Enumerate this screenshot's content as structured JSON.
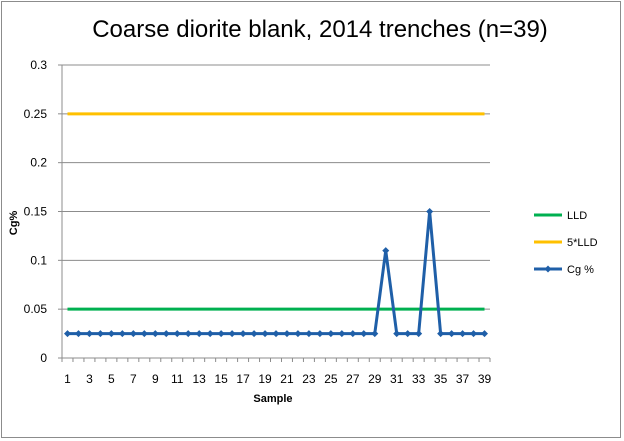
{
  "chart_data": {
    "type": "line",
    "title": "Coarse diorite blank, 2014 trenches (n=39)",
    "xlabel": "Sample",
    "ylabel": "Cg%",
    "ylim": [
      0,
      0.3
    ],
    "yticks": [
      0,
      0.05,
      0.1,
      0.15,
      0.2,
      0.25,
      0.3
    ],
    "ytick_labels": [
      "0",
      "0.05",
      "0.1",
      "0.15",
      "0.2",
      "0.25",
      "0.3"
    ],
    "x": [
      1,
      2,
      3,
      4,
      5,
      6,
      7,
      8,
      9,
      10,
      11,
      12,
      13,
      14,
      15,
      16,
      17,
      18,
      19,
      20,
      21,
      22,
      23,
      24,
      25,
      26,
      27,
      28,
      29,
      30,
      31,
      32,
      33,
      34,
      35,
      36,
      37,
      38,
      39
    ],
    "xtick_labels": [
      "1",
      "3",
      "5",
      "7",
      "9",
      "11",
      "13",
      "15",
      "17",
      "19",
      "21",
      "23",
      "25",
      "27",
      "29",
      "31",
      "33",
      "35",
      "37",
      "39"
    ],
    "grid": true,
    "legend_position": "right",
    "series": [
      {
        "name": "LLD",
        "color": "#00b050",
        "values": [
          0.05,
          0.05,
          0.05,
          0.05,
          0.05,
          0.05,
          0.05,
          0.05,
          0.05,
          0.05,
          0.05,
          0.05,
          0.05,
          0.05,
          0.05,
          0.05,
          0.05,
          0.05,
          0.05,
          0.05,
          0.05,
          0.05,
          0.05,
          0.05,
          0.05,
          0.05,
          0.05,
          0.05,
          0.05,
          0.05,
          0.05,
          0.05,
          0.05,
          0.05,
          0.05,
          0.05,
          0.05,
          0.05,
          0.05
        ]
      },
      {
        "name": "5*LLD",
        "color": "#ffc000",
        "values": [
          0.25,
          0.25,
          0.25,
          0.25,
          0.25,
          0.25,
          0.25,
          0.25,
          0.25,
          0.25,
          0.25,
          0.25,
          0.25,
          0.25,
          0.25,
          0.25,
          0.25,
          0.25,
          0.25,
          0.25,
          0.25,
          0.25,
          0.25,
          0.25,
          0.25,
          0.25,
          0.25,
          0.25,
          0.25,
          0.25,
          0.25,
          0.25,
          0.25,
          0.25,
          0.25,
          0.25,
          0.25,
          0.25,
          0.25
        ]
      },
      {
        "name": "Cg %",
        "color": "#1f5fa8",
        "marker": "diamond",
        "values": [
          0.025,
          0.025,
          0.025,
          0.025,
          0.025,
          0.025,
          0.025,
          0.025,
          0.025,
          0.025,
          0.025,
          0.025,
          0.025,
          0.025,
          0.025,
          0.025,
          0.025,
          0.025,
          0.025,
          0.025,
          0.025,
          0.025,
          0.025,
          0.025,
          0.025,
          0.025,
          0.025,
          0.025,
          0.025,
          0.11,
          0.025,
          0.025,
          0.025,
          0.15,
          0.025,
          0.025,
          0.025,
          0.025,
          0.025
        ]
      }
    ]
  }
}
